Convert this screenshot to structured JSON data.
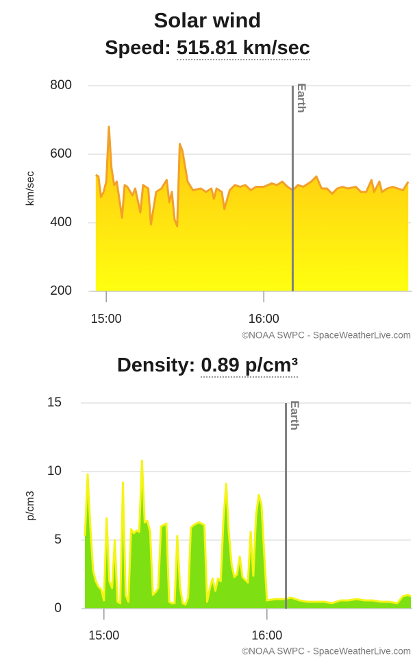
{
  "title": "Solar wind",
  "chart_data": [
    {
      "type": "area",
      "heading_label": "Speed:",
      "heading_value": "515.81 km/sec",
      "y_label": "km/sec",
      "x": [
        "14:56",
        "14:57",
        "14:58",
        "14:59",
        "15:00",
        "15:01",
        "15:02",
        "15:03",
        "15:04",
        "15:06",
        "15:07",
        "15:08",
        "15:10",
        "15:11",
        "15:13",
        "15:14",
        "15:16",
        "15:17",
        "15:19",
        "15:21",
        "15:23",
        "15:24",
        "15:25",
        "15:26",
        "15:27",
        "15:28",
        "15:29",
        "15:31",
        "15:33",
        "15:36",
        "15:38",
        "15:40",
        "15:41",
        "15:42",
        "15:44",
        "15:45",
        "15:47",
        "15:49",
        "15:51",
        "15:53",
        "15:55",
        "15:57",
        "16:00",
        "16:03",
        "16:05",
        "16:07",
        "16:09",
        "16:11",
        "16:13",
        "16:15",
        "16:18",
        "16:20",
        "16:22",
        "16:24",
        "16:26",
        "16:28",
        "16:30",
        "16:32",
        "16:35",
        "16:37",
        "16:39",
        "16:41",
        "16:42",
        "16:44",
        "16:45",
        "16:47",
        "16:49",
        "16:51",
        "16:53",
        "16:55"
      ],
      "values": [
        540,
        535,
        475,
        490,
        520,
        680,
        560,
        510,
        520,
        415,
        510,
        505,
        480,
        500,
        430,
        510,
        500,
        395,
        490,
        500,
        525,
        460,
        490,
        410,
        390,
        630,
        610,
        520,
        495,
        500,
        490,
        500,
        470,
        500,
        490,
        440,
        495,
        510,
        505,
        510,
        495,
        505,
        505,
        515,
        510,
        520,
        505,
        495,
        510,
        505,
        520,
        535,
        500,
        500,
        485,
        500,
        505,
        500,
        505,
        490,
        490,
        525,
        490,
        520,
        490,
        500,
        505,
        500,
        495,
        520
      ],
      "xlim": [
        "14:55",
        "16:56"
      ],
      "xticks": [
        "15:00",
        "16:00"
      ],
      "ylim": [
        200,
        800
      ],
      "yticks": [
        200,
        400,
        600,
        800
      ],
      "grid": true,
      "line_color": "#f2a02a",
      "fill_top": "#ffbf10",
      "fill_bottom": "#ffff10",
      "earth": {
        "x": "16:11",
        "label": "Earth"
      },
      "credit": "©NOAA SWPC - SpaceWeatherLive.com"
    },
    {
      "type": "area",
      "heading_label": "Density:",
      "heading_value": "0.89 p/cm³",
      "y_label": "p/cm3",
      "x": [
        "14:53",
        "14:54",
        "14:55",
        "14:56",
        "14:57",
        "14:58",
        "14:59",
        "15:00",
        "15:01",
        "15:02",
        "15:03",
        "15:04",
        "15:05",
        "15:06",
        "15:07",
        "15:08",
        "15:09",
        "15:10",
        "15:11",
        "15:12",
        "15:13",
        "15:14",
        "15:15",
        "15:16",
        "15:17",
        "15:18",
        "15:19",
        "15:20",
        "15:21",
        "15:22",
        "15:23",
        "15:24",
        "15:25",
        "15:26",
        "15:27",
        "15:28",
        "15:29",
        "15:30",
        "15:31",
        "15:32",
        "15:33",
        "15:34",
        "15:35",
        "15:36",
        "15:37",
        "15:38",
        "15:39",
        "15:40",
        "15:41",
        "15:42",
        "15:43",
        "15:44",
        "15:45",
        "15:46",
        "15:47",
        "15:48",
        "15:49",
        "15:50",
        "15:51",
        "15:52",
        "15:53",
        "15:54",
        "15:55",
        "15:56",
        "15:57",
        "15:58",
        "15:59",
        "16:00",
        "16:03",
        "16:06",
        "16:09",
        "16:12",
        "16:15",
        "16:18",
        "16:21",
        "16:24",
        "16:27",
        "16:30",
        "16:33",
        "16:36",
        "16:39",
        "16:42",
        "16:45",
        "16:48",
        "16:50",
        "16:52",
        "16:53"
      ],
      "values": [
        5.3,
        9.8,
        6,
        2.8,
        2,
        1.6,
        1.4,
        0.6,
        6.6,
        2,
        1.5,
        5,
        0.5,
        0.4,
        9.2,
        1,
        0.5,
        5.8,
        5.5,
        5.7,
        5.6,
        10.8,
        6.3,
        6.4,
        5.6,
        1,
        1.2,
        1.5,
        6,
        6.1,
        6.2,
        0.5,
        0.4,
        0.4,
        5.3,
        1.6,
        0.4,
        0.3,
        0.8,
        5.9,
        6.1,
        6.2,
        6.3,
        6.2,
        6.1,
        0.5,
        1.5,
        2.2,
        1.3,
        2.2,
        2,
        6.5,
        9.1,
        5.5,
        3.2,
        2.3,
        2.5,
        3.8,
        2.3,
        2.1,
        1.9,
        5.6,
        2.4,
        6.8,
        8.3,
        7.6,
        4,
        0.6,
        0.7,
        0.7,
        0.8,
        0.6,
        0.5,
        0.5,
        0.5,
        0.4,
        0.6,
        0.6,
        0.7,
        0.6,
        0.6,
        0.5,
        0.5,
        0.4,
        0.9,
        1,
        0.9
      ],
      "xlim": [
        "14:53",
        "16:53"
      ],
      "xticks": [
        "15:00",
        "16:00"
      ],
      "ylim": [
        0,
        15
      ],
      "yticks": [
        0,
        5,
        10,
        15
      ],
      "grid": true,
      "line_color": "#f4f418",
      "fill_top": "#7ee012",
      "fill_bottom": "#7ee012",
      "earth": {
        "x": "16:07",
        "label": "Earth"
      },
      "credit": "©NOAA SWPC - SpaceWeatherLive.com"
    }
  ]
}
